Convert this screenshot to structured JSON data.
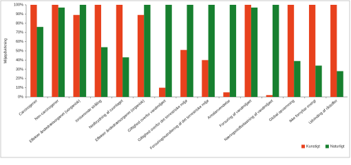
{
  "chart_data": {
    "type": "bar",
    "y_label": "Miljøpåvirkning",
    "categories": [
      "Carcinogener",
      "Non-carcinogener",
      "Effekter åndedrætsorganet (uorganisk)",
      "Ioniserende stråling",
      "Nedbrydning af ozonlaget",
      "Effekter åndedrætsorganet (organisk)",
      "Giftighed overfor vandmiljøet",
      "Giftighed overfor det terrestriske miljø",
      "Forsuring/eutrofiering af det terrestriske miljø",
      "Arealanvendelse",
      "Forsuring af vandmiljøet",
      "Næringsstofbelastning af vandmiljøet",
      "Global opvarmning",
      "Ikke fornybar energi",
      "Udvinding af råstoffer"
    ],
    "series": [
      {
        "name": "Kunstigt",
        "color": "#e8411d",
        "values": [
          100,
          100,
          89,
          100,
          100,
          89,
          10,
          51,
          40,
          5,
          100,
          2,
          100,
          100,
          100
        ]
      },
      {
        "name": "Naturligt",
        "color": "#17802f",
        "values": [
          76,
          97,
          100,
          54,
          43,
          100,
          100,
          100,
          100,
          100,
          97,
          100,
          39,
          34,
          28
        ]
      }
    ],
    "ylim": [
      0,
      100
    ],
    "yticks": [
      {
        "value": 0,
        "label": "0%"
      },
      {
        "value": 10,
        "label": "10%"
      },
      {
        "value": 20,
        "label": "20%"
      },
      {
        "value": 30,
        "label": "30%"
      },
      {
        "value": 40,
        "label": "40%"
      },
      {
        "value": 50,
        "label": "50%"
      },
      {
        "value": 60,
        "label": "60%"
      },
      {
        "value": 70,
        "label": "70%"
      },
      {
        "value": 80,
        "label": "80%"
      },
      {
        "value": 90,
        "label": "90%"
      },
      {
        "value": 100,
        "label": "100%"
      }
    ],
    "grid": false,
    "legend": "bottom-right"
  }
}
